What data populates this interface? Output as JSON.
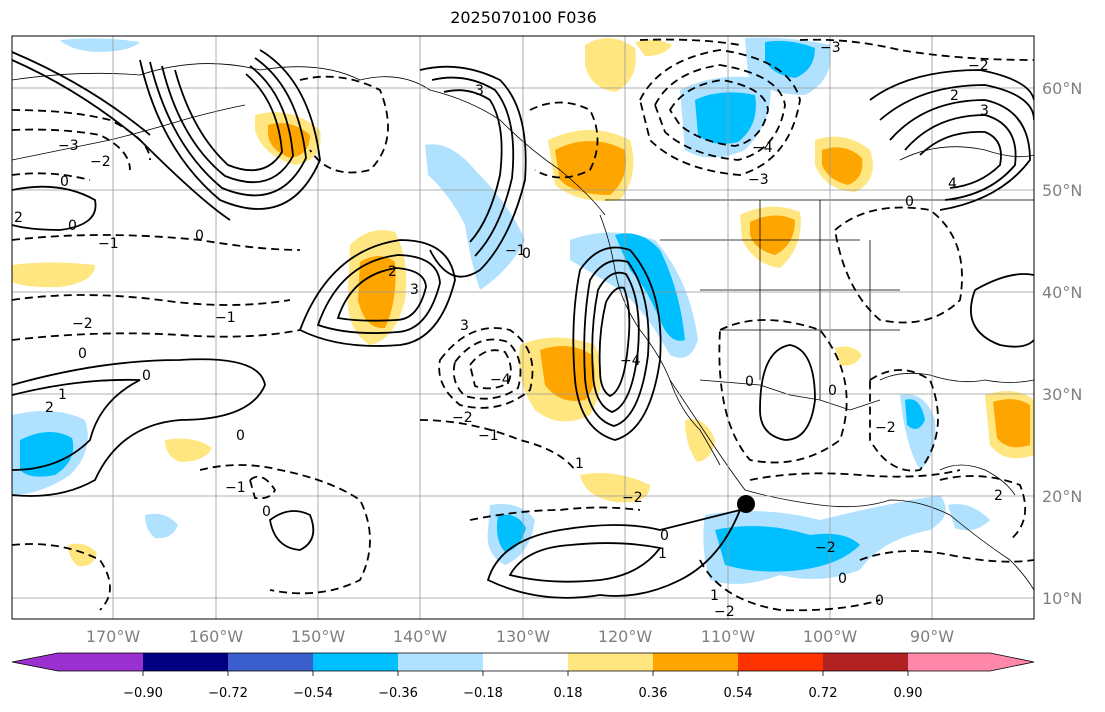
{
  "title": "2025070100 F036",
  "lat_ticks": [
    "60°N",
    "50°N",
    "40°N",
    "30°N",
    "20°N",
    "10°N"
  ],
  "lon_ticks": [
    "170°W",
    "160°W",
    "150°W",
    "140°W",
    "130°W",
    "120°W",
    "110°W",
    "100°W",
    "90°W"
  ],
  "colorbar": {
    "colors": [
      "#9b30d0",
      "#000080",
      "#3a5fcd",
      "#00bfff",
      "#b0e2ff",
      "#ffffff",
      "#ffe680",
      "#ffa500",
      "#ff3300",
      "#b22222",
      "#ff88aa"
    ],
    "labels": [
      "−0.90",
      "−0.72",
      "−0.54",
      "−0.36",
      "−0.18",
      "0.18",
      "0.36",
      "0.54",
      "0.72",
      "0.90"
    ]
  },
  "contour_labels": [
    "0",
    "1",
    "2",
    "3",
    "4",
    "−1",
    "−2",
    "−3",
    "−4"
  ],
  "marker": "storm-center-dot"
}
